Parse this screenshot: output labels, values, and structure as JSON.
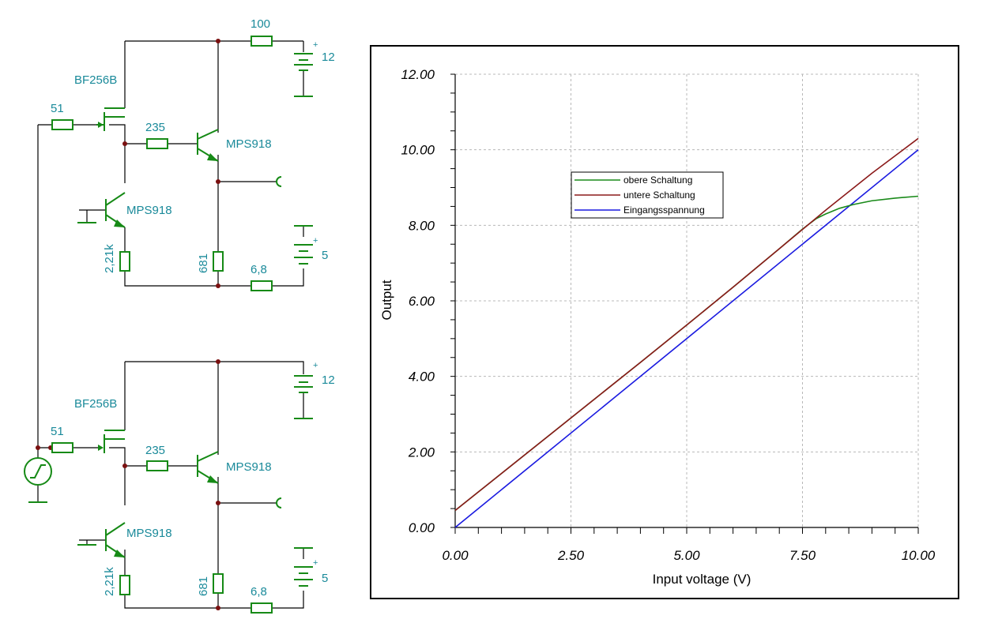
{
  "schematic": {
    "top": {
      "jfet": "BF256B",
      "r_in": "51",
      "r_base": "235",
      "r_supply": "100",
      "q_out": "MPS918",
      "q_src": "MPS918",
      "r_src": "2,21k",
      "r_load": "681",
      "r_neg": "6,8",
      "v_pos": "12",
      "v_neg": "5",
      "plus": "+"
    },
    "bottom": {
      "jfet": "BF256B",
      "r_in": "51",
      "r_base": "235",
      "q_out": "MPS918",
      "q_src": "MPS918",
      "r_src": "2,21k",
      "r_load": "681",
      "r_neg": "6,8",
      "v_pos": "12",
      "v_neg": "5",
      "plus": "+"
    }
  },
  "chart_data": {
    "type": "line",
    "xlabel": "Input voltage (V)",
    "ylabel": "Output",
    "xlim": [
      0,
      10
    ],
    "ylim": [
      0,
      12
    ],
    "x_ticks": [
      "0.00",
      "2.50",
      "5.00",
      "7.50",
      "10.00"
    ],
    "y_ticks": [
      "0.00",
      "2.00",
      "4.00",
      "6.00",
      "8.00",
      "10.00",
      "12.00"
    ],
    "grid": true,
    "legend_position": "upper-left-center",
    "series": [
      {
        "name": "obere Schaltung",
        "color": "#1a8a1a",
        "x": [
          0,
          1,
          2,
          3,
          4,
          5,
          6,
          7,
          7.5,
          7.8,
          8.0,
          8.3,
          8.6,
          9.0,
          9.5,
          10.0
        ],
        "y": [
          0.45,
          1.43,
          2.41,
          3.39,
          4.37,
          5.36,
          6.36,
          7.38,
          7.9,
          8.18,
          8.3,
          8.45,
          8.55,
          8.65,
          8.72,
          8.77
        ]
      },
      {
        "name": "untere Schaltung",
        "color": "#8b1a1a",
        "x": [
          0,
          1,
          2,
          3,
          4,
          5,
          6,
          7,
          8,
          9,
          10
        ],
        "y": [
          0.45,
          1.43,
          2.41,
          3.39,
          4.37,
          5.36,
          6.36,
          7.38,
          8.4,
          9.38,
          10.3
        ]
      },
      {
        "name": "Eingangsspannung",
        "color": "#1a1ae0",
        "x": [
          0,
          10
        ],
        "y": [
          0,
          10
        ]
      }
    ]
  }
}
